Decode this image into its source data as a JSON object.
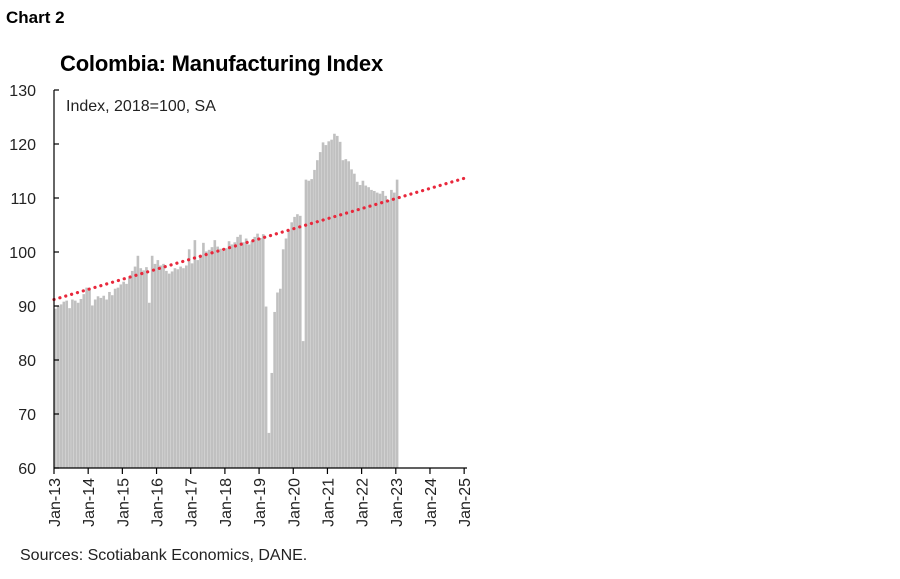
{
  "header": {
    "chart_label": "Chart 2",
    "title": "Colombia: Manufacturing Index"
  },
  "footer": {
    "sources": "Sources: Scotiabank Economics, DANE."
  },
  "colors": {
    "bars": "#c0c0c0",
    "trend": "#e8283c",
    "axis": "#000000"
  },
  "chart_data": {
    "type": "bar",
    "title": "Colombia: Manufacturing Index",
    "annotation": "Index, 2018=100, SA",
    "xlabel": "",
    "ylabel": "",
    "ylim": [
      60,
      130
    ],
    "yticks": [
      60,
      70,
      80,
      90,
      100,
      110,
      120,
      130
    ],
    "grid": false,
    "legend": "none",
    "x_start": "Jan-13",
    "x_end": "Jan-25",
    "xtick_labels": [
      "Jan-13",
      "Jan-14",
      "Jan-15",
      "Jan-16",
      "Jan-17",
      "Jan-18",
      "Jan-19",
      "Jan-20",
      "Jan-21",
      "Jan-22",
      "Jan-23",
      "Jan-24",
      "Jan-25"
    ],
    "series": [
      {
        "name": "",
        "type": "bar",
        "values": [
          89.5,
          90.0,
          90.3,
          90.8,
          91.0,
          89.6,
          91.2,
          91.0,
          90.6,
          91.3,
          92.2,
          93.4,
          93.0,
          90.1,
          91.2,
          91.8,
          91.5,
          91.9,
          91.2,
          92.6,
          92.0,
          93.2,
          93.4,
          94.0,
          94.5,
          94.1,
          95.2,
          96.5,
          97.3,
          99.3,
          97.0,
          96.6,
          97.2,
          90.6,
          99.3,
          97.8,
          98.5,
          97.5,
          97.8,
          96.5,
          96.0,
          96.4,
          97.0,
          96.8,
          97.3,
          97.0,
          97.5,
          100.5,
          97.9,
          102.2,
          98.5,
          99.4,
          101.7,
          100.1,
          100.4,
          100.9,
          102.2,
          101.0,
          100.6,
          100.2,
          100.7,
          102.0,
          101.4,
          101.8,
          102.8,
          103.2,
          101.8,
          102.5,
          101.4,
          102.0,
          102.8,
          103.4,
          102.6,
          103.3,
          89.9,
          66.5,
          77.6,
          88.9,
          92.5,
          93.2,
          100.5,
          102.5,
          104.0,
          105.5,
          106.5,
          107.0,
          106.7,
          83.5,
          113.4,
          113.2,
          113.5,
          115.2,
          117.0,
          118.5,
          120.3,
          119.8,
          120.5,
          120.8,
          121.9,
          121.5,
          120.4,
          117.0,
          117.2,
          116.8,
          115.3,
          114.5,
          113.0,
          112.4,
          113.2,
          112.3,
          112.0,
          111.5,
          111.3,
          111.0,
          110.8,
          111.3,
          110.4,
          109.6,
          111.5,
          111.0,
          113.4
        ]
      },
      {
        "name": "",
        "type": "line",
        "style": "dotted",
        "start": [
          0,
          91.2
        ],
        "end": [
          144,
          113.8
        ]
      }
    ]
  }
}
